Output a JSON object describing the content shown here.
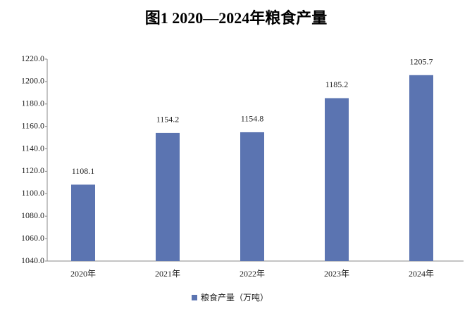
{
  "chart_data": {
    "type": "bar",
    "title": "图1  2020—2024年粮食产量",
    "categories": [
      "2020年",
      "2021年",
      "2022年",
      "2023年",
      "2024年"
    ],
    "series": [
      {
        "name": "粮食产量（万吨）",
        "color": "#5b74b1",
        "values": [
          1108.1,
          1154.2,
          1154.8,
          1185.2,
          1205.7
        ]
      }
    ],
    "ylim": [
      1040,
      1220
    ],
    "yticks": [
      {
        "value": 1040,
        "label": "1040.0"
      },
      {
        "value": 1060,
        "label": "1060.0"
      },
      {
        "value": 1080,
        "label": "1080.0"
      },
      {
        "value": 1100,
        "label": "1100.0"
      },
      {
        "value": 1120,
        "label": "1120.0"
      },
      {
        "value": 1140,
        "label": "1140.0"
      },
      {
        "value": 1160,
        "label": "1160.0"
      },
      {
        "value": 1180,
        "label": "1180.0"
      },
      {
        "value": 1200,
        "label": "1200.0"
      },
      {
        "value": 1220,
        "label": "1220.0"
      }
    ],
    "grid": false,
    "legend": "bottom"
  }
}
